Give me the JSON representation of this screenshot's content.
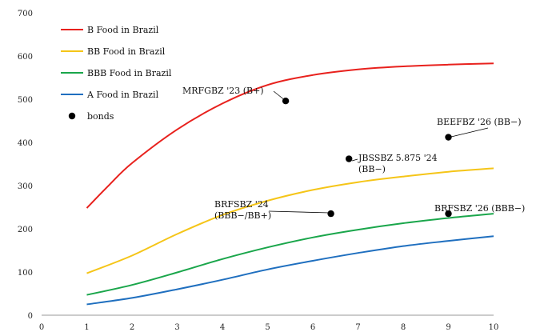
{
  "chart_data": {
    "type": "line",
    "xlim": [
      0,
      10
    ],
    "ylim": [
      0,
      700
    ],
    "x_ticks": [
      "0",
      "1",
      "2",
      "3",
      "4",
      "5",
      "6",
      "7",
      "8",
      "9",
      "10"
    ],
    "y_ticks": [
      "0",
      "100",
      "200",
      "300",
      "400",
      "500",
      "600",
      "700"
    ],
    "grid": false,
    "legend_position": "top-left",
    "series": [
      {
        "name": "B Food in Brazil",
        "color": "#e8211d",
        "x": [
          1,
          1.5,
          2,
          3,
          4,
          5,
          6,
          7,
          8,
          9,
          10
        ],
        "y": [
          248,
          302,
          352,
          430,
          490,
          533,
          556,
          569,
          576,
          580,
          583
        ]
      },
      {
        "name": "BB Food in Brazil",
        "color": "#f5c518",
        "x": [
          1,
          2,
          3,
          4,
          5,
          6,
          7,
          8,
          9,
          10
        ],
        "y": [
          97,
          138,
          188,
          232,
          265,
          290,
          308,
          321,
          332,
          340
        ]
      },
      {
        "name": "BBB Food in Brazil",
        "color": "#1aa64b",
        "x": [
          1,
          2,
          3,
          4,
          5,
          6,
          7,
          8,
          9,
          10
        ],
        "y": [
          47,
          70,
          99,
          130,
          157,
          180,
          198,
          213,
          225,
          235
        ]
      },
      {
        "name": "A Food in Brazil",
        "color": "#1f6fbf",
        "x": [
          1,
          2,
          3,
          4,
          5,
          6,
          7,
          8,
          9,
          10
        ],
        "y": [
          25,
          40,
          60,
          82,
          106,
          126,
          144,
          160,
          172,
          183
        ]
      }
    ],
    "bonds": {
      "name": "bonds",
      "color": "#000000",
      "points": [
        {
          "x": 5.4,
          "y": 496,
          "label": [
            "MRFGBZ '23 (B+)"
          ]
        },
        {
          "x": 9.0,
          "y": 412,
          "label": [
            "BEEFBZ '26 (BB−)"
          ]
        },
        {
          "x": 6.8,
          "y": 362,
          "label": [
            "JBSSBZ 5.875 '24",
            "(BB−)"
          ]
        },
        {
          "x": 6.4,
          "y": 235,
          "label": [
            "BRFSBZ '24",
            "(BBB−/BB+)"
          ]
        },
        {
          "x": 9.0,
          "y": 235,
          "label": [
            "BRFSBZ '26 (BBB−)"
          ]
        }
      ]
    }
  }
}
